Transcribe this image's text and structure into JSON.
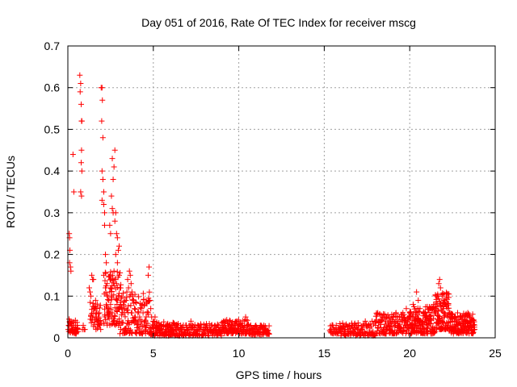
{
  "chart_data": {
    "type": "scatter",
    "title": "Day 051 of 2016, Rate Of TEC Index for receiver mscg",
    "xlabel": "GPS time / hours",
    "ylabel": "ROTI / TECUs",
    "xlim": [
      0,
      25
    ],
    "ylim": [
      0,
      0.7
    ],
    "xticks": [
      "0",
      "5",
      "10",
      "15",
      "20",
      "25"
    ],
    "yticks": [
      "0",
      "0.1",
      "0.2",
      "0.3",
      "0.4",
      "0.5",
      "0.6",
      "0.7"
    ],
    "grid": true,
    "marker": "plus",
    "color": "#ff0000",
    "series": [
      {
        "points": [
          [
            0.02,
            0.02
          ],
          [
            0.05,
            0.03
          ],
          [
            0.08,
            0.25
          ],
          [
            0.1,
            0.24
          ],
          [
            0.12,
            0.21
          ],
          [
            0.1,
            0.18
          ],
          [
            0.15,
            0.17
          ],
          [
            0.18,
            0.16
          ],
          [
            0.12,
            0.04
          ],
          [
            0.2,
            0.03
          ],
          [
            0.25,
            0.03
          ],
          [
            0.3,
            0.02
          ],
          [
            0.35,
            0.03
          ],
          [
            0.4,
            0.02
          ],
          [
            0.45,
            0.03
          ],
          [
            0.5,
            0.02
          ],
          [
            0.55,
            0.03
          ],
          [
            0.3,
            0.44
          ],
          [
            0.35,
            0.35
          ],
          [
            0.55,
            0.02
          ],
          [
            0.7,
            0.63
          ],
          [
            0.75,
            0.61
          ],
          [
            0.72,
            0.59
          ],
          [
            0.78,
            0.56
          ],
          [
            0.8,
            0.52
          ],
          [
            0.82,
            0.52
          ],
          [
            0.8,
            0.45
          ],
          [
            0.78,
            0.42
          ],
          [
            0.82,
            0.4
          ],
          [
            0.75,
            0.35
          ],
          [
            0.8,
            0.34
          ],
          [
            0.85,
            0.02
          ],
          [
            0.9,
            0.03
          ],
          [
            0.95,
            0.02
          ],
          [
            1.0,
            0.02
          ],
          [
            1.25,
            0.12
          ],
          [
            1.3,
            0.11
          ],
          [
            1.35,
            0.1
          ],
          [
            1.4,
            0.15
          ],
          [
            1.45,
            0.14
          ],
          [
            1.5,
            0.14
          ],
          [
            1.55,
            0.07
          ],
          [
            1.6,
            0.05
          ],
          [
            1.65,
            0.06
          ],
          [
            1.7,
            0.07
          ],
          [
            1.75,
            0.04
          ],
          [
            1.8,
            0.05
          ],
          [
            1.85,
            0.03
          ],
          [
            1.9,
            0.04
          ],
          [
            1.95,
            0.6
          ],
          [
            2.0,
            0.6
          ],
          [
            2.02,
            0.57
          ],
          [
            1.98,
            0.52
          ],
          [
            2.05,
            0.48
          ],
          [
            2.0,
            0.4
          ],
          [
            2.05,
            0.38
          ],
          [
            2.1,
            0.35
          ],
          [
            2.0,
            0.33
          ],
          [
            2.1,
            0.32
          ],
          [
            2.15,
            0.3
          ],
          [
            2.15,
            0.27
          ],
          [
            2.2,
            0.2
          ],
          [
            2.25,
            0.18
          ],
          [
            2.1,
            0.15
          ],
          [
            2.2,
            0.12
          ],
          [
            2.3,
            0.13
          ],
          [
            2.35,
            0.1
          ],
          [
            2.4,
            0.09
          ],
          [
            2.25,
            0.08
          ],
          [
            2.3,
            0.06
          ],
          [
            2.35,
            0.05
          ],
          [
            2.4,
            0.07
          ],
          [
            2.45,
            0.11
          ],
          [
            2.5,
            0.12
          ],
          [
            2.55,
            0.1
          ],
          [
            2.5,
            0.08
          ],
          [
            2.55,
            0.05
          ],
          [
            2.6,
            0.06
          ],
          [
            2.65,
            0.04
          ],
          [
            2.45,
            0.27
          ],
          [
            2.5,
            0.25
          ],
          [
            2.55,
            0.34
          ],
          [
            2.6,
            0.31
          ],
          [
            2.65,
            0.3
          ],
          [
            2.6,
            0.43
          ],
          [
            2.7,
            0.41
          ],
          [
            2.75,
            0.45
          ],
          [
            2.65,
            0.38
          ],
          [
            2.8,
            0.3
          ],
          [
            2.75,
            0.28
          ],
          [
            2.85,
            0.25
          ],
          [
            2.9,
            0.24
          ],
          [
            2.8,
            0.2
          ],
          [
            2.95,
            0.21
          ],
          [
            3.0,
            0.22
          ],
          [
            2.9,
            0.18
          ],
          [
            3.0,
            0.15
          ],
          [
            3.05,
            0.12
          ],
          [
            2.85,
            0.13
          ],
          [
            2.9,
            0.09
          ],
          [
            3.0,
            0.07
          ],
          [
            3.1,
            0.08
          ],
          [
            2.95,
            0.03
          ],
          [
            3.05,
            0.01
          ],
          [
            3.1,
            0.02
          ],
          [
            2.7,
            0.16
          ],
          [
            2.75,
            0.14
          ],
          [
            3.2,
            0.06
          ],
          [
            3.25,
            0.08
          ],
          [
            3.3,
            0.06
          ],
          [
            3.35,
            0.07
          ],
          [
            3.4,
            0.09
          ],
          [
            3.45,
            0.11
          ],
          [
            3.5,
            0.14
          ],
          [
            3.55,
            0.12
          ],
          [
            3.6,
            0.16
          ],
          [
            3.65,
            0.15
          ],
          [
            3.7,
            0.13
          ],
          [
            3.75,
            0.11
          ],
          [
            3.8,
            0.1
          ],
          [
            3.85,
            0.09
          ],
          [
            3.9,
            0.07
          ],
          [
            3.95,
            0.05
          ],
          [
            4.0,
            0.04
          ],
          [
            4.1,
            0.06
          ],
          [
            4.2,
            0.05
          ],
          [
            4.3,
            0.07
          ],
          [
            4.35,
            0.08
          ],
          [
            4.4,
            0.06
          ],
          [
            4.5,
            0.04
          ],
          [
            4.6,
            0.03
          ],
          [
            4.7,
            0.06
          ],
          [
            4.8,
            0.09
          ],
          [
            4.75,
            0.17
          ],
          [
            4.7,
            0.15
          ],
          [
            4.85,
            0.07
          ],
          [
            4.9,
            0.05
          ],
          [
            5.0,
            0.04
          ],
          [
            5.1,
            0.05
          ],
          [
            5.2,
            0.03
          ],
          [
            5.3,
            0.02
          ],
          [
            5.4,
            0.03
          ],
          [
            5.5,
            0.02
          ],
          [
            5.6,
            0.03
          ],
          [
            5.7,
            0.02
          ],
          [
            5.8,
            0.03
          ],
          [
            5.9,
            0.02
          ],
          [
            6.0,
            0.02
          ],
          [
            6.1,
            0.03
          ],
          [
            6.2,
            0.02
          ],
          [
            6.3,
            0.02
          ],
          [
            6.4,
            0.03
          ],
          [
            6.5,
            0.02
          ],
          [
            6.6,
            0.03
          ],
          [
            6.7,
            0.02
          ],
          [
            6.8,
            0.02
          ],
          [
            6.9,
            0.03
          ],
          [
            7.0,
            0.02
          ],
          [
            7.1,
            0.03
          ],
          [
            7.2,
            0.04
          ],
          [
            7.3,
            0.03
          ],
          [
            7.4,
            0.02
          ],
          [
            7.5,
            0.02
          ],
          [
            7.6,
            0.03
          ],
          [
            7.7,
            0.02
          ],
          [
            7.8,
            0.02
          ],
          [
            7.9,
            0.02
          ],
          [
            8.0,
            0.02
          ],
          [
            8.1,
            0.03
          ],
          [
            8.2,
            0.02
          ],
          [
            8.3,
            0.02
          ],
          [
            8.4,
            0.03
          ],
          [
            8.5,
            0.02
          ],
          [
            8.6,
            0.03
          ],
          [
            8.7,
            0.02
          ],
          [
            8.8,
            0.03
          ],
          [
            8.9,
            0.02
          ],
          [
            9.0,
            0.03
          ],
          [
            9.1,
            0.04
          ],
          [
            9.2,
            0.03
          ],
          [
            9.3,
            0.02
          ],
          [
            9.4,
            0.03
          ],
          [
            9.5,
            0.04
          ],
          [
            9.6,
            0.03
          ],
          [
            9.7,
            0.02
          ],
          [
            9.8,
            0.03
          ],
          [
            9.9,
            0.04
          ],
          [
            10.0,
            0.03
          ],
          [
            10.1,
            0.02
          ],
          [
            10.2,
            0.03
          ],
          [
            10.3,
            0.02
          ],
          [
            10.4,
            0.05
          ],
          [
            10.5,
            0.03
          ],
          [
            10.6,
            0.02
          ],
          [
            10.7,
            0.03
          ],
          [
            10.8,
            0.02
          ],
          [
            10.9,
            0.02
          ],
          [
            11.0,
            0.03
          ],
          [
            11.1,
            0.02
          ],
          [
            11.2,
            0.02
          ],
          [
            11.3,
            0.03
          ],
          [
            11.4,
            0.02
          ],
          [
            11.5,
            0.02
          ],
          [
            11.6,
            0.02
          ],
          [
            11.7,
            0.01
          ],
          [
            15.4,
            0.02
          ],
          [
            15.5,
            0.03
          ],
          [
            15.6,
            0.02
          ],
          [
            15.7,
            0.03
          ],
          [
            15.9,
            0.02
          ],
          [
            16.0,
            0.01
          ],
          [
            16.2,
            0.02
          ],
          [
            16.4,
            0.02
          ],
          [
            16.6,
            0.03
          ],
          [
            16.8,
            0.02
          ],
          [
            17.0,
            0.03
          ],
          [
            17.2,
            0.02
          ],
          [
            17.4,
            0.04
          ],
          [
            17.6,
            0.03
          ],
          [
            17.8,
            0.04
          ],
          [
            18.0,
            0.03
          ],
          [
            18.2,
            0.04
          ],
          [
            18.4,
            0.05
          ],
          [
            18.6,
            0.04
          ],
          [
            18.8,
            0.05
          ],
          [
            19.0,
            0.04
          ],
          [
            19.2,
            0.06
          ],
          [
            19.4,
            0.05
          ],
          [
            19.6,
            0.06
          ],
          [
            19.8,
            0.07
          ],
          [
            20.0,
            0.06
          ],
          [
            20.2,
            0.08
          ],
          [
            20.4,
            0.11
          ],
          [
            20.5,
            0.09
          ],
          [
            20.6,
            0.07
          ],
          [
            20.8,
            0.06
          ],
          [
            21.0,
            0.05
          ],
          [
            21.2,
            0.07
          ],
          [
            21.4,
            0.08
          ],
          [
            21.6,
            0.1
          ],
          [
            21.7,
            0.13
          ],
          [
            21.75,
            0.14
          ],
          [
            21.8,
            0.12
          ],
          [
            21.9,
            0.1
          ],
          [
            22.0,
            0.09
          ],
          [
            22.1,
            0.08
          ],
          [
            22.2,
            0.07
          ],
          [
            22.3,
            0.06
          ],
          [
            22.4,
            0.05
          ],
          [
            22.5,
            0.04
          ],
          [
            22.6,
            0.05
          ],
          [
            22.8,
            0.06
          ],
          [
            23.0,
            0.05
          ],
          [
            23.2,
            0.04
          ],
          [
            23.4,
            0.06
          ],
          [
            23.5,
            0.05
          ],
          [
            23.6,
            0.04
          ],
          [
            23.7,
            0.03
          ],
          [
            23.8,
            0.02
          ]
        ],
        "bands": [
          [
            0.05,
            0.6,
            0.01,
            0.045,
            40
          ],
          [
            1.3,
            1.95,
            0.02,
            0.09,
            40
          ],
          [
            2.1,
            3.2,
            0.03,
            0.16,
            90
          ],
          [
            3.2,
            4.8,
            0.01,
            0.11,
            110
          ],
          [
            4.8,
            6.5,
            0.005,
            0.04,
            110
          ],
          [
            6.5,
            9.0,
            0.005,
            0.035,
            120
          ],
          [
            9.0,
            10.6,
            0.01,
            0.045,
            100
          ],
          [
            10.6,
            11.8,
            0.008,
            0.03,
            60
          ],
          [
            15.3,
            15.9,
            0.01,
            0.035,
            20
          ],
          [
            15.9,
            18.0,
            0.005,
            0.04,
            100
          ],
          [
            18.0,
            20.0,
            0.01,
            0.06,
            140
          ],
          [
            20.0,
            21.5,
            0.01,
            0.075,
            160
          ],
          [
            21.5,
            22.3,
            0.02,
            0.11,
            100
          ],
          [
            22.3,
            23.8,
            0.01,
            0.06,
            150
          ]
        ]
      }
    ]
  }
}
